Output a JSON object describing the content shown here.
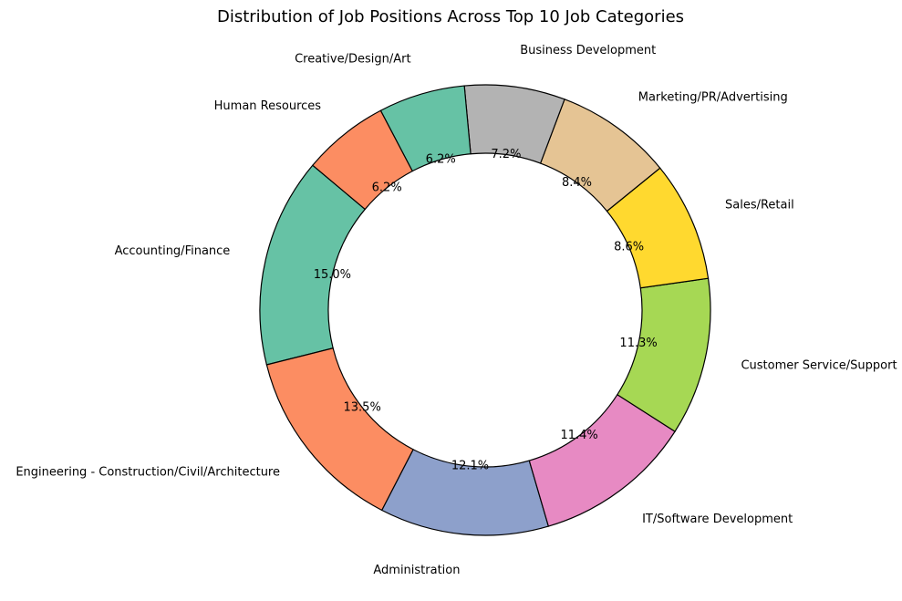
{
  "chart_data": {
    "type": "pie",
    "donut": true,
    "title": "Distribution of Job Positions Across Top 10 Job Categories",
    "start_angle_deg": 140,
    "direction": "counterclockwise",
    "slices": [
      {
        "label": "Accounting/Finance",
        "value": 15.0,
        "pct_label": "15.0%",
        "color": "#66c2a5"
      },
      {
        "label": "Engineering - Construction/Civil/Architecture",
        "value": 13.5,
        "pct_label": "13.5%",
        "color": "#fc8d62"
      },
      {
        "label": "Administration",
        "value": 12.1,
        "pct_label": "12.1%",
        "color": "#8da0cb"
      },
      {
        "label": "IT/Software Development",
        "value": 11.4,
        "pct_label": "11.4%",
        "color": "#e78ac3"
      },
      {
        "label": "Customer Service/Support",
        "value": 11.3,
        "pct_label": "11.3%",
        "color": "#a6d854"
      },
      {
        "label": "Sales/Retail",
        "value": 8.6,
        "pct_label": "8.6%",
        "color": "#ffd92f"
      },
      {
        "label": "Marketing/PR/Advertising",
        "value": 8.4,
        "pct_label": "8.4%",
        "color": "#e5c494"
      },
      {
        "label": "Business Development",
        "value": 7.2,
        "pct_label": "7.2%",
        "color": "#b3b3b3"
      },
      {
        "label": "Creative/Design/Art",
        "value": 6.2,
        "pct_label": "6.2%",
        "color": "#66c2a5"
      },
      {
        "label": "Human Resources",
        "value": 6.2,
        "pct_label": "6.2%",
        "color": "#fc8d62"
      }
    ]
  }
}
